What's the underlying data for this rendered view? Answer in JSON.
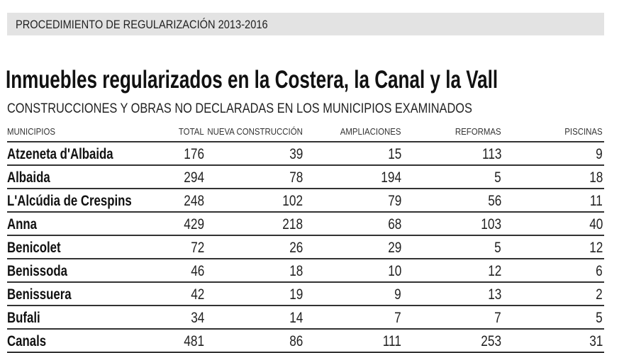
{
  "banner": "PROCEDIMIENTO DE REGULARIZACIÓN 2013-2016",
  "title": "Inmuebles regularizados en la Costera, la Canal y la Vall",
  "subtitle": "CONSTRUCCIONES Y OBRAS NO DECLARADAS EN LOS MUNICIPIOS EXAMINADOS",
  "table": {
    "headers": [
      "MUNICIPIOS",
      "TOTAL",
      "NUEVA CONSTRUCCIÓN",
      "AMPLIACIONES",
      "REFORMAS",
      "PISCINAS"
    ],
    "rows": [
      [
        "Atzeneta d'Albaida",
        "176",
        "39",
        "15",
        "113",
        "9"
      ],
      [
        "Albaida",
        "294",
        "78",
        "194",
        "5",
        "18"
      ],
      [
        "L'Alcúdia de Crespins",
        "248",
        "102",
        "79",
        "56",
        "11"
      ],
      [
        "Anna",
        "429",
        "218",
        "68",
        "103",
        "40"
      ],
      [
        "Benicolet",
        "72",
        "26",
        "29",
        "5",
        "12"
      ],
      [
        "Benissoda",
        "46",
        "18",
        "10",
        "12",
        "6"
      ],
      [
        "Benissuera",
        "42",
        "19",
        "9",
        "13",
        "2"
      ],
      [
        "Bufali",
        "34",
        "14",
        "7",
        "7",
        "5"
      ],
      [
        "Canals",
        "481",
        "86",
        "111",
        "253",
        "31"
      ]
    ]
  }
}
